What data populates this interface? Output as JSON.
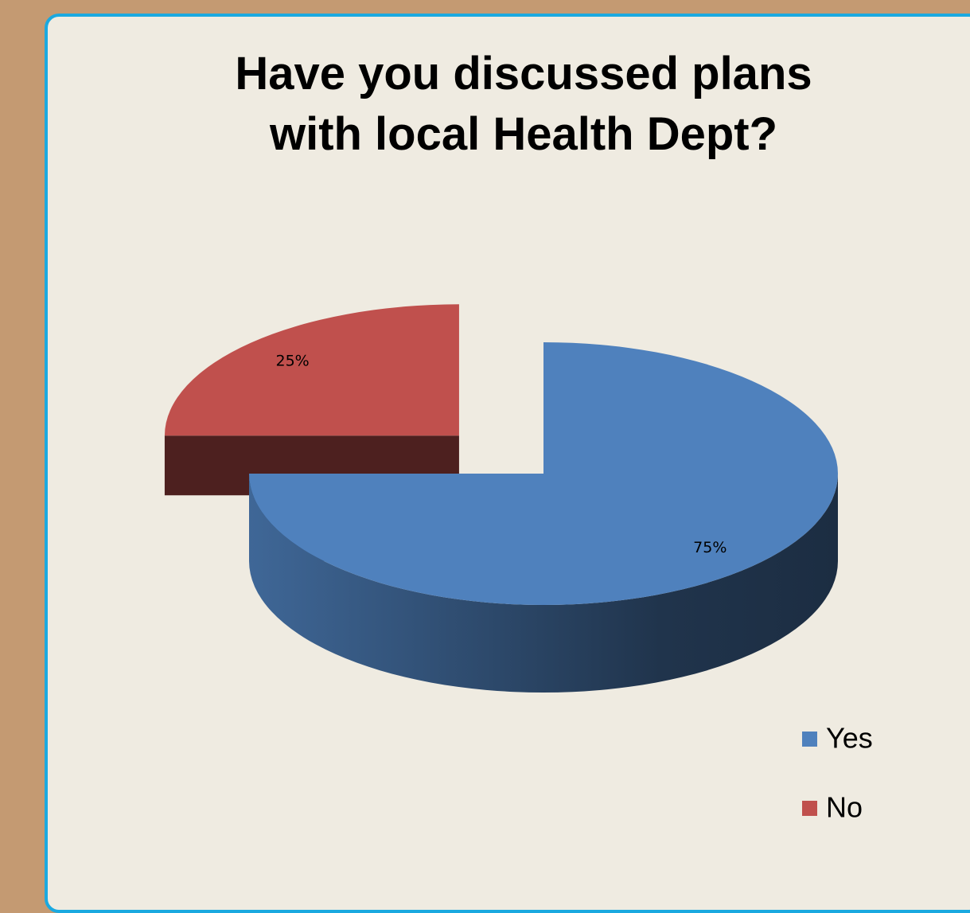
{
  "chart_data": {
    "type": "pie",
    "title": "Have you discussed plans\nwith local Health Dept?",
    "categories": [
      "Yes",
      "No"
    ],
    "values": [
      75,
      25
    ],
    "value_labels": [
      "75%",
      "25%"
    ],
    "colors": [
      "#4f81bd",
      "#c0504d"
    ],
    "legend": "right"
  }
}
